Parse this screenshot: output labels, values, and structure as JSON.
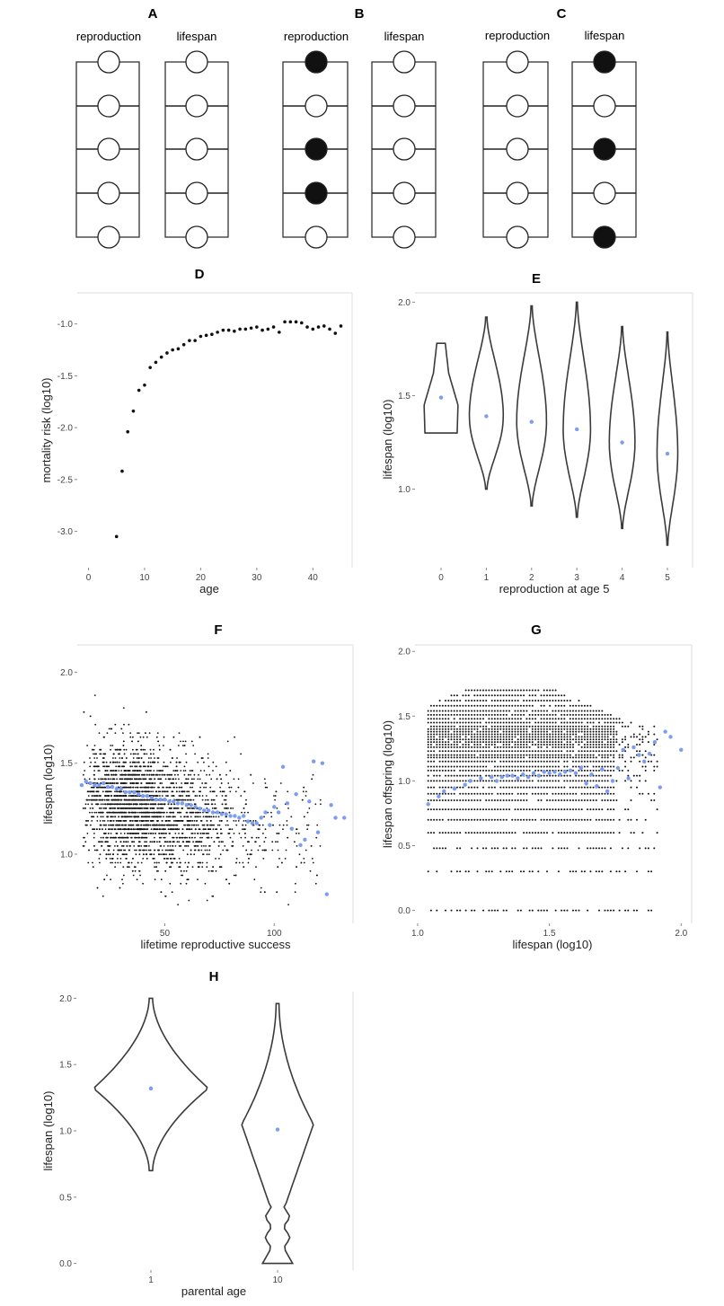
{
  "panels": {
    "A": {
      "label": "A"
    },
    "B": {
      "label": "B"
    },
    "C": {
      "label": "C"
    },
    "D": {
      "label": "D"
    },
    "E": {
      "label": "E"
    },
    "F": {
      "label": "F"
    },
    "G": {
      "label": "G"
    },
    "H": {
      "label": "H"
    }
  },
  "colors": {
    "raw_points": "#111111",
    "mean_points": "#7b9ef0",
    "violin_stroke": "#3a3a3a",
    "filled_circle": "#111111"
  },
  "diagrams": [
    {
      "id": "A",
      "columns": [
        {
          "label": "reproduction",
          "filled": [
            false,
            false,
            false,
            false,
            false
          ]
        },
        {
          "label": "lifespan",
          "filled": [
            false,
            false,
            false,
            false,
            false
          ]
        }
      ]
    },
    {
      "id": "B",
      "columns": [
        {
          "label": "reproduction",
          "filled": [
            true,
            false,
            true,
            true,
            false
          ]
        },
        {
          "label": "lifespan",
          "filled": [
            false,
            false,
            false,
            false,
            false
          ]
        }
      ]
    },
    {
      "id": "C",
      "columns": [
        {
          "label": "reproduction",
          "filled": [
            false,
            false,
            false,
            false,
            false
          ]
        },
        {
          "label": "lifespan",
          "filled": [
            true,
            false,
            true,
            false,
            true
          ]
        }
      ]
    }
  ],
  "chart_data": [
    {
      "id": "D",
      "type": "scatter",
      "xlabel": "age",
      "ylabel": "mortality risk (log10)",
      "xlim": [
        -2,
        47
      ],
      "ylim": [
        -3.35,
        -0.7
      ],
      "xticks": [
        0,
        10,
        20,
        30,
        40
      ],
      "xtick_labels": [
        "0",
        "10",
        "20",
        "30",
        "40"
      ],
      "yticks": [
        -3.0,
        -2.5,
        -2.0,
        -1.5,
        -1.0
      ],
      "ytick_labels": [
        "-3.0",
        "-2.5",
        "-2.0",
        "-1.5",
        "-1.0"
      ],
      "grid": false,
      "x": [
        5,
        6,
        7,
        8,
        9,
        10,
        11,
        12,
        13,
        14,
        15,
        16,
        17,
        18,
        19,
        20,
        21,
        22,
        23,
        24,
        25,
        26,
        27,
        28,
        29,
        30,
        31,
        32,
        33,
        34,
        35,
        36,
        37,
        38,
        39,
        40,
        41,
        42,
        43,
        44,
        45
      ],
      "y": [
        -3.05,
        -2.42,
        -2.04,
        -1.84,
        -1.64,
        -1.59,
        -1.42,
        -1.37,
        -1.32,
        -1.28,
        -1.25,
        -1.24,
        -1.2,
        -1.16,
        -1.16,
        -1.12,
        -1.11,
        -1.1,
        -1.08,
        -1.06,
        -1.06,
        -1.07,
        -1.05,
        -1.05,
        -1.04,
        -1.03,
        -1.06,
        -1.05,
        -1.03,
        -1.08,
        -0.98,
        -0.98,
        -0.98,
        -0.99,
        -1.03,
        -1.05,
        -1.03,
        -1.02,
        -1.05,
        -1.09,
        -1.02
      ]
    },
    {
      "id": "E",
      "type": "violin",
      "xlabel": "reproduction at age 5",
      "ylabel": "lifespan (log10)",
      "categories": [
        "0",
        "1",
        "2",
        "3",
        "4",
        "5"
      ],
      "ylim": [
        0.58,
        2.05
      ],
      "yticks": [
        1.0,
        1.5,
        2.0
      ],
      "ytick_labels": [
        "1.0",
        "1.5",
        "2.0"
      ],
      "means": [
        1.49,
        1.39,
        1.36,
        1.32,
        1.25,
        1.19
      ],
      "ymin": [
        1.3,
        1.0,
        0.91,
        0.85,
        0.79,
        0.7
      ],
      "ymax": [
        1.78,
        1.92,
        1.98,
        2.0,
        1.87,
        1.84
      ],
      "widths": [
        0.82,
        0.82,
        0.72,
        0.66,
        0.62,
        0.5
      ],
      "grid": false
    },
    {
      "id": "F",
      "type": "scatter",
      "xlabel": "lifetime reproductive success",
      "ylabel": "lifespan (log10)",
      "xlim": [
        10,
        136
      ],
      "ylim": [
        0.62,
        2.15
      ],
      "xticks": [
        50,
        100
      ],
      "xtick_labels": [
        "50",
        "100"
      ],
      "yticks": [
        1.0,
        1.5,
        2.0
      ],
      "ytick_labels": [
        "1.0",
        "1.5",
        "2.0"
      ],
      "grid": false,
      "raw_description_series": "individuals (black points, quantised lifespans)",
      "mean_series": {
        "x": [
          12,
          14,
          16,
          18,
          20,
          22,
          24,
          26,
          28,
          30,
          32,
          34,
          36,
          38,
          40,
          42,
          44,
          46,
          48,
          50,
          52,
          54,
          56,
          58,
          60,
          62,
          64,
          66,
          68,
          70,
          72,
          74,
          76,
          78,
          80,
          82,
          84,
          86,
          88,
          90,
          92,
          94,
          96,
          98,
          100,
          102,
          104,
          106,
          108,
          110,
          112,
          114,
          116,
          118,
          120,
          122,
          124,
          126,
          128,
          132
        ],
        "y": [
          1.38,
          1.4,
          1.39,
          1.38,
          1.38,
          1.39,
          1.37,
          1.37,
          1.36,
          1.36,
          1.34,
          1.34,
          1.34,
          1.33,
          1.32,
          1.32,
          1.31,
          1.3,
          1.3,
          1.3,
          1.29,
          1.29,
          1.28,
          1.28,
          1.27,
          1.27,
          1.26,
          1.25,
          1.24,
          1.24,
          1.23,
          1.23,
          1.22,
          1.22,
          1.21,
          1.21,
          1.2,
          1.21,
          1.18,
          1.17,
          1.17,
          1.2,
          1.23,
          1.16,
          1.26,
          1.23,
          1.48,
          1.28,
          1.14,
          1.33,
          1.05,
          1.08,
          1.29,
          1.51,
          1.12,
          1.5,
          0.78,
          1.27,
          1.2,
          1.2
        ]
      }
    },
    {
      "id": "G",
      "type": "scatter",
      "xlabel": "lifespan (log10)",
      "ylabel": "lifespan offspring (log10)",
      "xlim": [
        0.99,
        2.04
      ],
      "ylim": [
        -0.1,
        2.05
      ],
      "xticks": [
        1.0,
        1.5,
        2.0
      ],
      "xtick_labels": [
        "1.0",
        "1.5",
        "2.0"
      ],
      "yticks": [
        0.0,
        0.5,
        1.0,
        1.5,
        2.0
      ],
      "ytick_labels": [
        "0.0",
        "0.5",
        "1.0",
        "1.5",
        "2.0"
      ],
      "grid": false,
      "mean_series": {
        "x": [
          1.04,
          1.08,
          1.1,
          1.14,
          1.18,
          1.2,
          1.24,
          1.28,
          1.3,
          1.32,
          1.34,
          1.36,
          1.38,
          1.4,
          1.42,
          1.44,
          1.46,
          1.48,
          1.5,
          1.52,
          1.54,
          1.56,
          1.58,
          1.6,
          1.62,
          1.64,
          1.66,
          1.68,
          1.7,
          1.72,
          1.74,
          1.76,
          1.78,
          1.8,
          1.82,
          1.84,
          1.86,
          1.88,
          1.9,
          1.92,
          1.94,
          1.96,
          2.0
        ],
        "y": [
          0.82,
          0.88,
          0.92,
          0.94,
          0.97,
          1.0,
          1.02,
          1.03,
          1.0,
          1.03,
          1.04,
          1.04,
          1.02,
          1.05,
          1.03,
          1.06,
          1.04,
          1.07,
          1.06,
          1.07,
          1.05,
          1.07,
          1.08,
          1.06,
          1.1,
          0.98,
          1.05,
          0.96,
          1.09,
          0.92,
          1.0,
          1.1,
          1.24,
          1.02,
          1.26,
          1.2,
          1.15,
          1.21,
          1.3,
          0.95,
          1.38,
          1.34,
          1.24
        ]
      }
    },
    {
      "id": "H",
      "type": "violin",
      "xlabel": "parental age",
      "ylabel": "lifespan (log10)",
      "categories": [
        "1",
        "10"
      ],
      "ylim": [
        -0.05,
        2.05
      ],
      "yticks": [
        0.0,
        0.5,
        1.0,
        1.5,
        2.0
      ],
      "ytick_labels": [
        "0.0",
        "0.5",
        "1.0",
        "1.5",
        "2.0"
      ],
      "means": [
        1.32,
        1.01
      ],
      "ymin": [
        0.7,
        0.0
      ],
      "ymax": [
        2.0,
        1.96
      ],
      "widths": [
        0.9,
        0.48
      ],
      "grid": false
    }
  ]
}
